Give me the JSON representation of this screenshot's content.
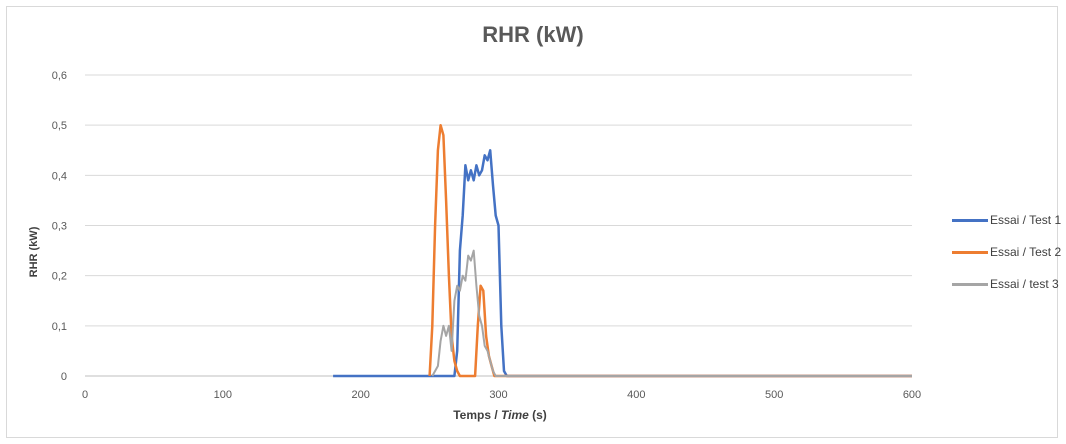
{
  "chart_data": {
    "type": "line",
    "title": "RHR (kW)",
    "ylabel": "RHR (kW)",
    "xlabel_main": "Temps / ",
    "xlabel_italic": "Time",
    "xlabel_unit": " (s)",
    "xlim": [
      0,
      600
    ],
    "ylim": [
      0,
      0.6
    ],
    "x_ticks": [
      "0",
      "100",
      "200",
      "300",
      "400",
      "500",
      "600"
    ],
    "y_ticks": [
      "0",
      "0,1",
      "0,2",
      "0,3",
      "0,4",
      "0,5",
      "0,6"
    ],
    "grid": true,
    "legend_position": "right",
    "series": [
      {
        "name": "Essai / Test 1",
        "color": "#4472c4",
        "points": [
          [
            180,
            0
          ],
          [
            268,
            0
          ],
          [
            270,
            0.05
          ],
          [
            272,
            0.25
          ],
          [
            274,
            0.32
          ],
          [
            276,
            0.42
          ],
          [
            278,
            0.39
          ],
          [
            280,
            0.41
          ],
          [
            282,
            0.39
          ],
          [
            284,
            0.42
          ],
          [
            286,
            0.4
          ],
          [
            288,
            0.41
          ],
          [
            290,
            0.44
          ],
          [
            292,
            0.43
          ],
          [
            294,
            0.45
          ],
          [
            296,
            0.38
          ],
          [
            298,
            0.32
          ],
          [
            300,
            0.3
          ],
          [
            302,
            0.1
          ],
          [
            304,
            0.01
          ],
          [
            306,
            0
          ],
          [
            600,
            0
          ]
        ]
      },
      {
        "name": "Essai / Test 2",
        "color": "#ed7d31",
        "points": [
          [
            250,
            0
          ],
          [
            252,
            0.1
          ],
          [
            254,
            0.3
          ],
          [
            256,
            0.45
          ],
          [
            258,
            0.5
          ],
          [
            260,
            0.48
          ],
          [
            262,
            0.35
          ],
          [
            264,
            0.2
          ],
          [
            266,
            0.08
          ],
          [
            268,
            0.03
          ],
          [
            270,
            0.01
          ],
          [
            272,
            0
          ],
          [
            283,
            0
          ],
          [
            285,
            0.1
          ],
          [
            287,
            0.18
          ],
          [
            289,
            0.17
          ],
          [
            291,
            0.08
          ],
          [
            293,
            0.04
          ],
          [
            295,
            0.02
          ],
          [
            297,
            0
          ],
          [
            600,
            0
          ]
        ]
      },
      {
        "name": "Essai / test 3",
        "color": "#a5a5a5",
        "points": [
          [
            252,
            0
          ],
          [
            256,
            0.02
          ],
          [
            258,
            0.07
          ],
          [
            260,
            0.1
          ],
          [
            262,
            0.08
          ],
          [
            264,
            0.1
          ],
          [
            266,
            0.05
          ],
          [
            268,
            0.15
          ],
          [
            270,
            0.18
          ],
          [
            272,
            0.17
          ],
          [
            274,
            0.2
          ],
          [
            276,
            0.19
          ],
          [
            278,
            0.24
          ],
          [
            280,
            0.23
          ],
          [
            282,
            0.25
          ],
          [
            284,
            0.18
          ],
          [
            286,
            0.12
          ],
          [
            288,
            0.1
          ],
          [
            290,
            0.06
          ],
          [
            292,
            0.05
          ],
          [
            294,
            0.03
          ],
          [
            296,
            0.01
          ],
          [
            298,
            0
          ],
          [
            600,
            0
          ]
        ]
      }
    ]
  }
}
